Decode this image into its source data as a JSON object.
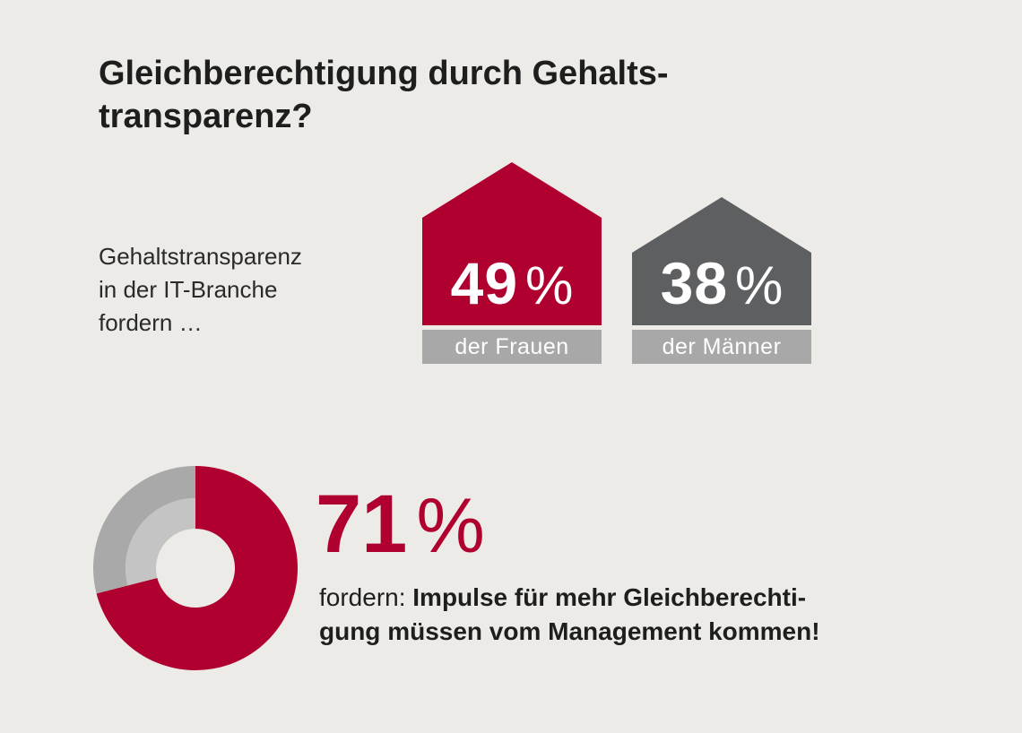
{
  "title": {
    "line1": "Gleichberechtigung durch Gehalts-",
    "line2": "transparenz?"
  },
  "intro": {
    "line1": "Gehaltstransparenz",
    "line2": "in der IT-Branche",
    "line3": "fordern …"
  },
  "colors": {
    "background": "#edebe8",
    "accent_red": "#b0002f",
    "dark_gray": "#5d5f61",
    "label_gray": "#a8a8a8",
    "donut_outer_gray": "#a9a9a9",
    "donut_inner_gray": "#c4c4c4"
  },
  "houses": [
    {
      "value": "49",
      "unit": "%",
      "label": "der Frauen",
      "color": "#b0002f"
    },
    {
      "value": "38",
      "unit": "%",
      "label": "der Männer",
      "color": "#5d5f61"
    }
  ],
  "donut": {
    "value": "71",
    "unit": "%",
    "statement_prefix": "fordern:",
    "statement_bold_line1": "Impulse für mehr Gleichberechti-",
    "statement_bold_line2": "gung müssen vom Management kommen!"
  },
  "chart_data": [
    {
      "type": "bar",
      "categories": [
        "der Frauen",
        "der Männer"
      ],
      "values": [
        49,
        38
      ],
      "unit": "%"
    },
    {
      "type": "pie",
      "values": [
        71,
        29
      ],
      "unit": "%"
    }
  ]
}
